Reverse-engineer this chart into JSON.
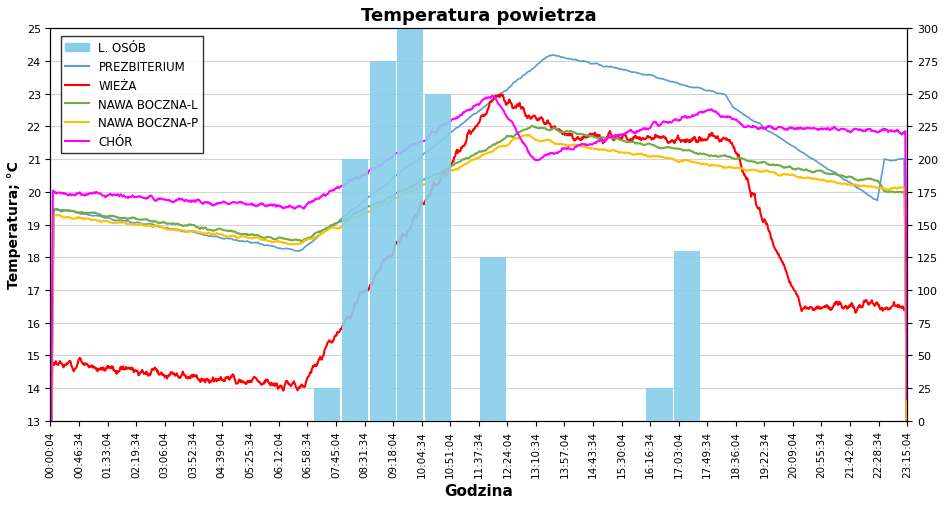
{
  "title": "Temperatura powietrza",
  "xlabel": "Godzina",
  "ylabel": "Temperatura; °C",
  "ylim_left": [
    13,
    25
  ],
  "ylim_right": [
    0,
    300
  ],
  "yticks_left": [
    13,
    14,
    15,
    16,
    17,
    18,
    19,
    20,
    21,
    22,
    23,
    24,
    25
  ],
  "yticks_right": [
    0,
    25,
    50,
    75,
    100,
    125,
    150,
    175,
    200,
    225,
    250,
    275,
    300
  ],
  "time_labels": [
    "00:00:04",
    "00:46:34",
    "01:33:04",
    "02:19:34",
    "03:06:04",
    "03:52:34",
    "04:39:04",
    "05:25:34",
    "06:12:04",
    "06:58:34",
    "07:45:04",
    "08:31:34",
    "09:18:04",
    "10:04:34",
    "10:51:04",
    "11:37:34",
    "12:24:04",
    "13:10:34",
    "13:57:04",
    "14:43:34",
    "15:30:04",
    "16:16:34",
    "17:03:04",
    "17:49:34",
    "18:36:04",
    "19:22:34",
    "20:09:04",
    "20:55:34",
    "21:42:04",
    "22:28:34",
    "23:15:04"
  ],
  "bar_color": "#87CEEB",
  "colors": {
    "PREZBITERIUM": "#5B9BD5",
    "WIEZA": "#FF0000",
    "NAWA_BOCZNA_L": "#70AD47",
    "NAWA_BOCZNA_P": "#FFC000",
    "CHOR": "#FF00FF"
  }
}
